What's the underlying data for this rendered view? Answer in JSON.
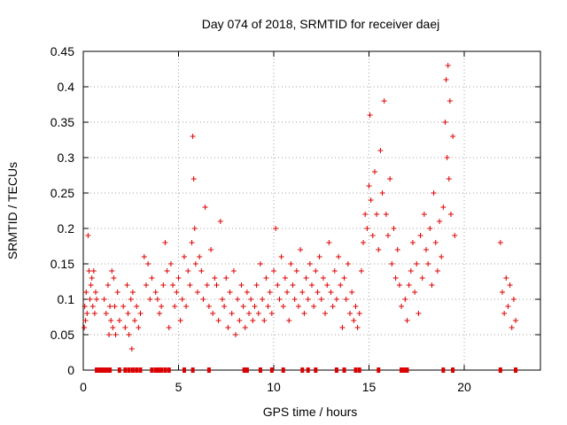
{
  "chart_data": {
    "type": "scatter",
    "title": "Day 074 of 2018, SRMTID for receiver daej",
    "xlabel": "GPS time / hours",
    "ylabel": "SRMTID / TECUs",
    "xlim": [
      0,
      24
    ],
    "ylim": [
      0,
      0.45
    ],
    "xticks": [
      0,
      5,
      10,
      15,
      20
    ],
    "xtick_labels": [
      "0",
      "5",
      "10",
      "15",
      "20"
    ],
    "yticks": [
      0,
      0.05,
      0.1,
      0.15,
      0.2,
      0.25,
      0.3,
      0.35,
      0.4,
      0.45
    ],
    "ytick_labels": [
      "0",
      "0.05",
      "0.1",
      "0.15",
      "0.2",
      "0.25",
      "0.3",
      "0.35",
      "0.4",
      "0.45"
    ],
    "grid": true,
    "marker": "+",
    "color": "#dd0000",
    "series": [
      {
        "name": "SRMTID",
        "x": [
          0.05,
          0.08,
          0.12,
          0.15,
          0.2,
          0.25,
          0.3,
          0.35,
          0.4,
          0.45,
          0.5,
          0.55,
          0.6,
          0.65,
          0.7,
          1.1,
          1.2,
          1.3,
          1.35,
          1.4,
          1.45,
          1.5,
          1.55,
          1.6,
          1.65,
          1.7,
          1.8,
          1.9,
          2.1,
          2.2,
          2.3,
          2.35,
          2.4,
          2.5,
          2.55,
          2.6,
          2.7,
          2.8,
          2.9,
          3.0,
          3.2,
          3.3,
          3.4,
          3.5,
          3.6,
          3.8,
          3.9,
          4.0,
          4.1,
          4.2,
          4.3,
          4.4,
          4.5,
          4.6,
          4.7,
          4.8,
          4.9,
          5.0,
          5.1,
          5.2,
          5.3,
          5.4,
          5.5,
          5.6,
          5.7,
          5.75,
          5.8,
          5.85,
          5.9,
          6.0,
          6.1,
          6.2,
          6.3,
          6.4,
          6.5,
          6.6,
          6.7,
          6.8,
          6.9,
          7.0,
          7.1,
          7.2,
          7.3,
          7.4,
          7.5,
          7.6,
          7.7,
          7.8,
          7.9,
          8.0,
          8.1,
          8.2,
          8.3,
          8.4,
          8.5,
          8.6,
          8.7,
          8.8,
          8.9,
          9.0,
          9.1,
          9.2,
          9.3,
          9.4,
          9.5,
          9.6,
          9.7,
          9.8,
          9.9,
          10.0,
          10.1,
          10.2,
          10.3,
          10.4,
          10.5,
          10.6,
          10.7,
          10.8,
          10.9,
          11.0,
          11.1,
          11.2,
          11.3,
          11.4,
          11.5,
          11.6,
          11.7,
          11.8,
          11.9,
          12.0,
          12.1,
          12.2,
          12.3,
          12.4,
          12.5,
          12.6,
          12.7,
          12.8,
          12.9,
          13.0,
          13.1,
          13.2,
          13.3,
          13.4,
          13.5,
          13.6,
          13.7,
          13.8,
          13.9,
          14.0,
          14.1,
          14.2,
          14.3,
          14.4,
          14.5,
          14.6,
          14.7,
          14.8,
          14.9,
          15.0,
          15.05,
          15.1,
          15.2,
          15.3,
          15.4,
          15.5,
          15.6,
          15.7,
          15.8,
          15.9,
          16.0,
          16.1,
          16.2,
          16.3,
          16.4,
          16.5,
          16.6,
          16.7,
          16.9,
          17.0,
          17.1,
          17.2,
          17.3,
          17.4,
          17.5,
          17.6,
          17.7,
          17.8,
          17.9,
          18.0,
          18.1,
          18.2,
          18.3,
          18.4,
          18.5,
          18.6,
          18.7,
          18.8,
          18.9,
          19.0,
          19.05,
          19.1,
          19.15,
          19.2,
          19.25,
          19.3,
          19.4,
          19.5,
          21.9,
          22.0,
          22.1,
          22.2,
          22.3,
          22.4,
          22.5,
          22.6,
          22.7
        ],
        "y": [
          0.06,
          0.09,
          0.07,
          0.11,
          0.08,
          0.19,
          0.14,
          0.1,
          0.12,
          0.13,
          0.09,
          0.14,
          0.08,
          0.11,
          0.1,
          0.1,
          0.08,
          0.12,
          0.05,
          0.09,
          0.07,
          0.14,
          0.06,
          0.13,
          0.09,
          0.05,
          0.11,
          0.07,
          0.09,
          0.06,
          0.12,
          0.08,
          0.05,
          0.1,
          0.03,
          0.11,
          0.07,
          0.09,
          0.06,
          0.08,
          0.16,
          0.12,
          0.15,
          0.1,
          0.13,
          0.11,
          0.1,
          0.08,
          0.09,
          0.12,
          0.18,
          0.14,
          0.06,
          0.15,
          0.12,
          0.09,
          0.11,
          0.13,
          0.07,
          0.1,
          0.16,
          0.09,
          0.14,
          0.12,
          0.18,
          0.33,
          0.27,
          0.2,
          0.15,
          0.11,
          0.16,
          0.14,
          0.1,
          0.23,
          0.12,
          0.09,
          0.17,
          0.08,
          0.13,
          0.12,
          0.07,
          0.21,
          0.1,
          0.09,
          0.13,
          0.06,
          0.11,
          0.08,
          0.14,
          0.05,
          0.1,
          0.07,
          0.12,
          0.09,
          0.06,
          0.11,
          0.08,
          0.1,
          0.07,
          0.09,
          0.12,
          0.08,
          0.15,
          0.1,
          0.07,
          0.13,
          0.09,
          0.11,
          0.08,
          0.14,
          0.2,
          0.12,
          0.1,
          0.16,
          0.09,
          0.13,
          0.11,
          0.07,
          0.15,
          0.12,
          0.1,
          0.14,
          0.09,
          0.17,
          0.11,
          0.08,
          0.13,
          0.1,
          0.15,
          0.12,
          0.09,
          0.14,
          0.11,
          0.16,
          0.1,
          0.13,
          0.08,
          0.12,
          0.18,
          0.11,
          0.09,
          0.14,
          0.1,
          0.16,
          0.12,
          0.06,
          0.13,
          0.1,
          0.15,
          0.08,
          0.11,
          0.07,
          0.09,
          0.06,
          0.08,
          0.14,
          0.18,
          0.22,
          0.2,
          0.26,
          0.36,
          0.24,
          0.19,
          0.28,
          0.22,
          0.17,
          0.31,
          0.25,
          0.38,
          0.22,
          0.19,
          0.27,
          0.15,
          0.2,
          0.13,
          0.17,
          0.12,
          0.09,
          0.1,
          0.07,
          0.12,
          0.14,
          0.18,
          0.11,
          0.15,
          0.08,
          0.19,
          0.13,
          0.22,
          0.17,
          0.15,
          0.2,
          0.12,
          0.25,
          0.18,
          0.14,
          0.21,
          0.16,
          0.23,
          0.35,
          0.41,
          0.3,
          0.43,
          0.27,
          0.38,
          0.22,
          0.33,
          0.19,
          0.18,
          0.11,
          0.08,
          0.13,
          0.09,
          0.12,
          0.06,
          0.1,
          0.07
        ]
      }
    ],
    "gap_markers_x": [
      0.7,
      0.85,
      1.0,
      1.15,
      1.3,
      1.4,
      1.9,
      2.2,
      2.4,
      2.6,
      2.8,
      3.0,
      3.6,
      3.8,
      3.95,
      4.1,
      4.3,
      4.5,
      5.3,
      5.75,
      6.6,
      8.45,
      8.6,
      9.3,
      9.9,
      10.5,
      11.5,
      11.8,
      12.2,
      13.3,
      13.7,
      14.3,
      14.5,
      15.5,
      16.7,
      16.85,
      17.0,
      18.9,
      19.4,
      21.9,
      22.7
    ]
  }
}
